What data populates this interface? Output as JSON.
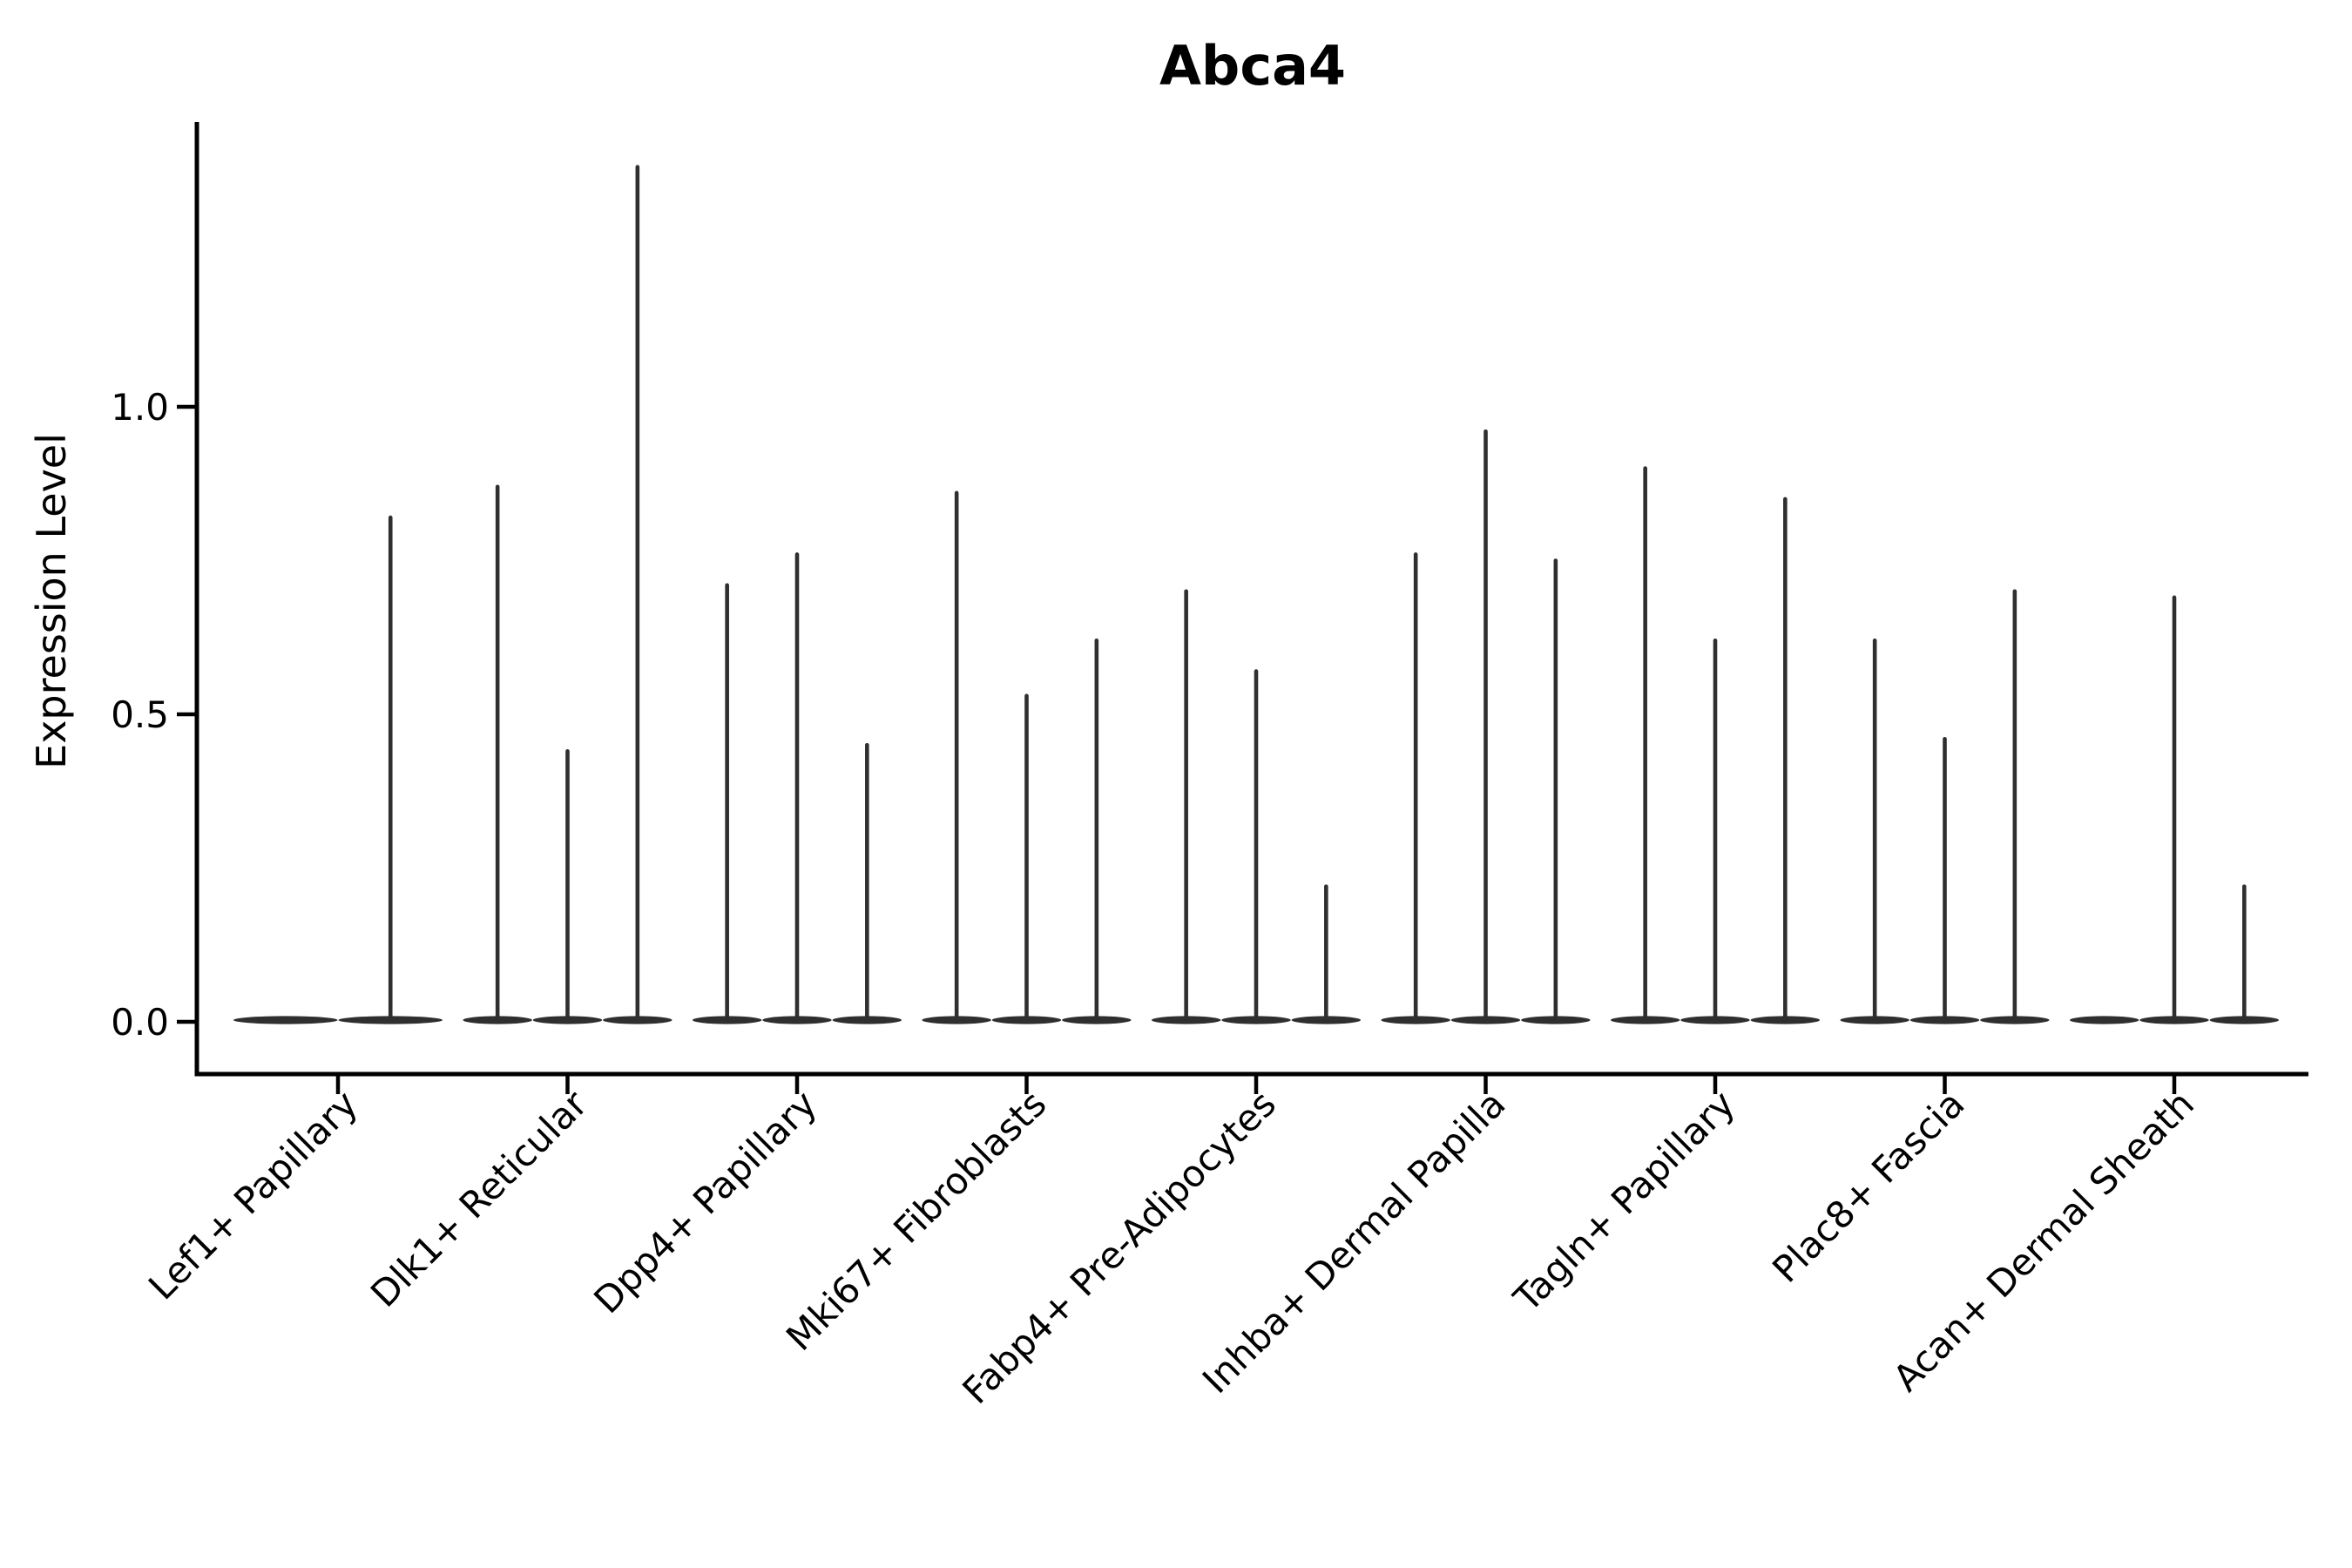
{
  "figure": {
    "background": "#ffffff"
  },
  "chart_data": {
    "type": "violin",
    "title": "Abca4",
    "xlabel": "",
    "ylabel": "Expression Level",
    "yticks": [
      0.0,
      0.5,
      1.0
    ],
    "ytick_labels": [
      "0.0",
      "0.5",
      "1.0"
    ],
    "ylim": [
      -0.085,
      1.46
    ],
    "grid": false,
    "legend": "none",
    "description": "Violin plot of Abca4 expression; each category holds side-by-side flat violins (expression mostly 0) with thin density spikes whose tops mark the maximum expression level.",
    "categories": [
      "Lef1+ Papillary",
      "Dlk1+ Reticular",
      "Dpp4+ Papillary",
      "Mki67+ Fibroblasts",
      "Fabp4+ Pre-Adipocytes",
      "Inhba+ Dermal Papilla",
      "Tagln+ Papillary",
      "Plac8+ Fascia",
      "Acan+ Dermal Sheath"
    ],
    "groups": [
      {
        "category": "Lef1+ Papillary",
        "violin_peaks": [
          0,
          0.82
        ]
      },
      {
        "category": "Dlk1+ Reticular",
        "violin_peaks": [
          0.87,
          0.44,
          1.39
        ]
      },
      {
        "category": "Dpp4+ Papillary",
        "violin_peaks": [
          0.71,
          0.76,
          0.45
        ]
      },
      {
        "category": "Mki67+ Fibroblasts",
        "violin_peaks": [
          0.86,
          0.53,
          0.62
        ]
      },
      {
        "category": "Fabp4+ Pre-Adipocytes",
        "violin_peaks": [
          0.7,
          0.57,
          0.22
        ]
      },
      {
        "category": "Inhba+ Dermal Papilla",
        "violin_peaks": [
          0.76,
          0.96,
          0.75
        ]
      },
      {
        "category": "Tagln+ Papillary",
        "violin_peaks": [
          0.9,
          0.62,
          0.85
        ]
      },
      {
        "category": "Plac8+ Fascia",
        "violin_peaks": [
          0.62,
          0.46,
          0.7
        ]
      },
      {
        "category": "Acan+ Dermal Sheath",
        "violin_peaks": [
          0,
          0.69,
          0.22
        ]
      }
    ],
    "colors": {
      "violin": "#2f2f2f",
      "spine": "#000000",
      "text": "#000000"
    }
  }
}
